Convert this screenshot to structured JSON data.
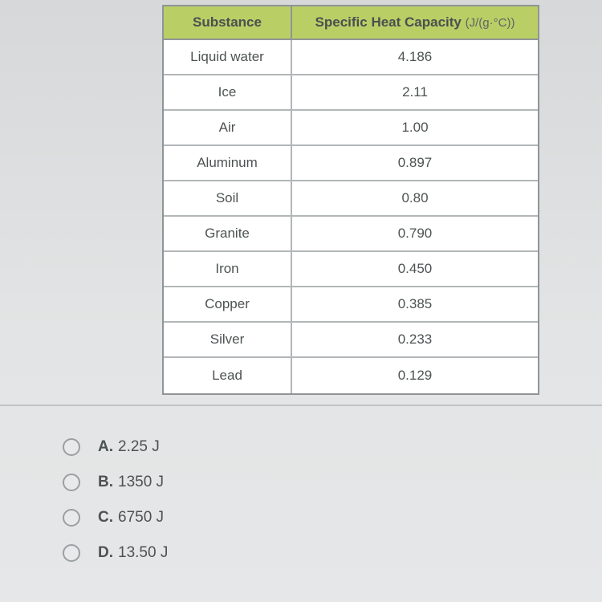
{
  "table": {
    "header": {
      "substance": "Substance",
      "capacity_label": "Specific Heat Capacity",
      "capacity_unit": "(J/(g·°C))"
    },
    "header_bg": "#b9cf66",
    "border_color": "#8f9597",
    "row_border_color": "#b2b7b8",
    "text_color": "#4d5252",
    "rows": [
      {
        "substance": "Liquid water",
        "value": "4.186"
      },
      {
        "substance": "Ice",
        "value": "2.11"
      },
      {
        "substance": "Air",
        "value": "1.00"
      },
      {
        "substance": "Aluminum",
        "value": "0.897"
      },
      {
        "substance": "Soil",
        "value": "0.80"
      },
      {
        "substance": "Granite",
        "value": "0.790"
      },
      {
        "substance": "Iron",
        "value": "0.450"
      },
      {
        "substance": "Copper",
        "value": "0.385"
      },
      {
        "substance": "Silver",
        "value": "0.233"
      },
      {
        "substance": "Lead",
        "value": "0.129"
      }
    ]
  },
  "options": [
    {
      "letter": "A.",
      "text": "2.25 J"
    },
    {
      "letter": "B.",
      "text": "1350 J"
    },
    {
      "letter": "C.",
      "text": "6750 J"
    },
    {
      "letter": "D.",
      "text": "13.50 J"
    }
  ],
  "colors": {
    "page_bg": "#d8dadb",
    "radio_border": "#9aa0a1",
    "divider": "#bfc4c6"
  }
}
